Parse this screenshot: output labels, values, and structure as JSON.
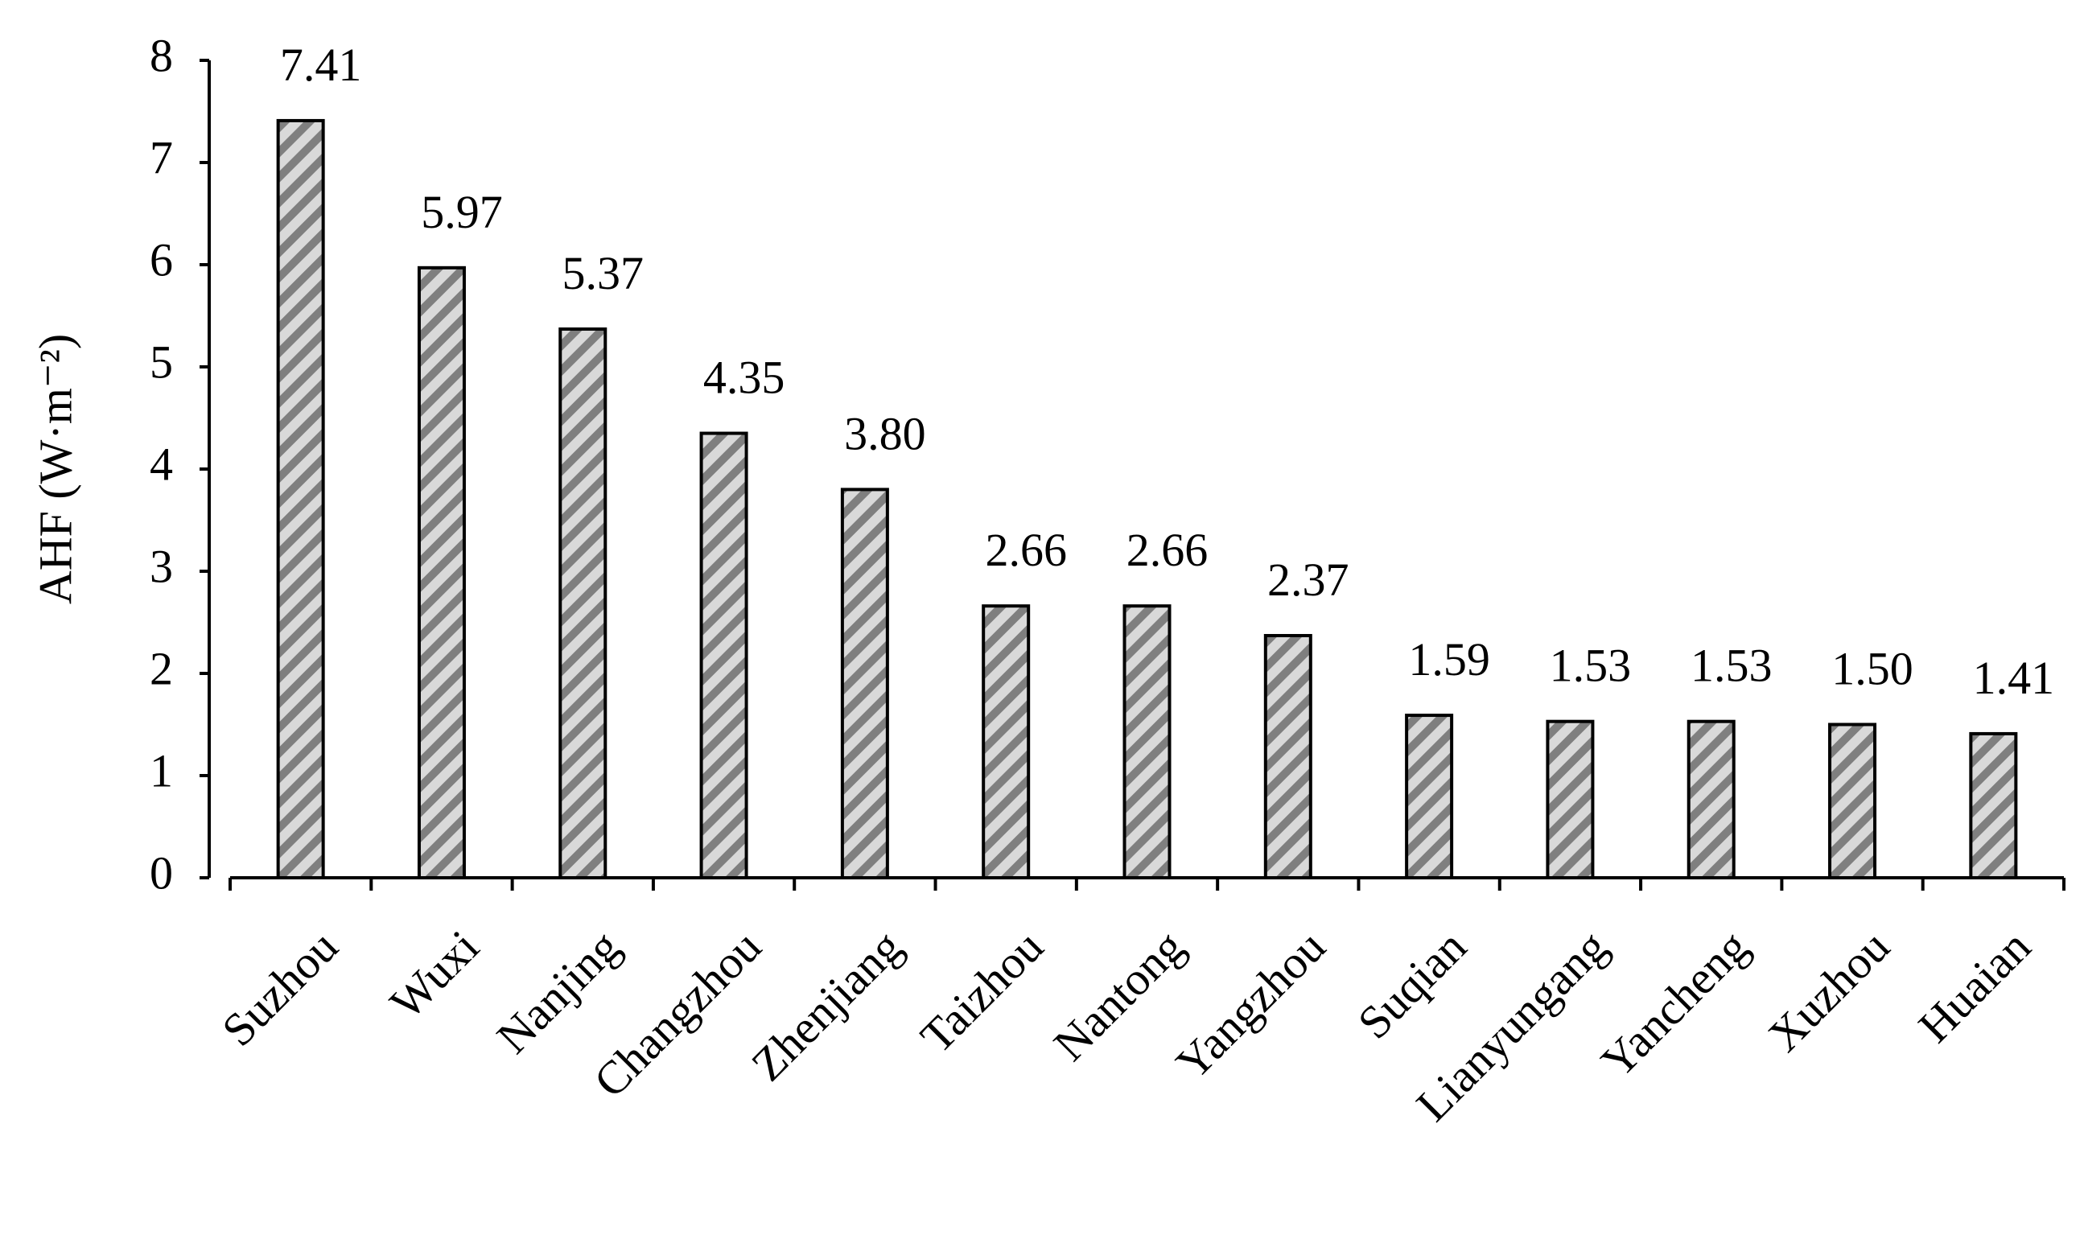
{
  "chart_data": {
    "type": "bar",
    "y_label": "AHF (W·m⁻²)",
    "categories": [
      "Suzhou",
      "Wuxi",
      "Nanjing",
      "Changzhou",
      "Zhenjiang",
      "Taizhou",
      "Nantong",
      "Yangzhou",
      "Suqian",
      "Lianyungang",
      "Yancheng",
      "Xuzhou",
      "Huaian"
    ],
    "values": [
      7.41,
      5.97,
      5.37,
      4.35,
      3.8,
      2.66,
      2.66,
      2.37,
      1.59,
      1.53,
      1.53,
      1.5,
      1.41
    ],
    "value_labels": [
      "7.41",
      "5.97",
      "5.37",
      "4.35",
      "3.80",
      "2.66",
      "2.66",
      "2.37",
      "1.59",
      "1.53",
      "1.53",
      "1.50",
      "1.41"
    ],
    "color": "#d9d9d9",
    "hatch_color": "#7f7f7f",
    "ylim": [
      0,
      8
    ],
    "yticks": [
      0,
      1,
      2,
      3,
      4,
      5,
      6,
      7,
      8
    ],
    "grid": false
  }
}
